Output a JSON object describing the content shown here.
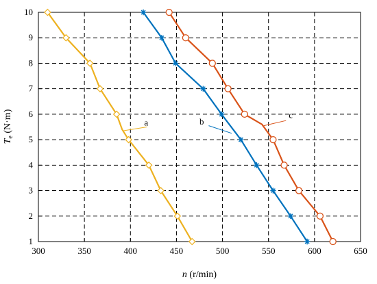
{
  "chart_data": {
    "type": "line",
    "xlabel_italic": "n",
    "xlabel_rest": " (r/min)",
    "ylabel_italic": "T",
    "ylabel_sub": "e",
    "ylabel_rest": " (N·m)",
    "xlim": [
      300,
      650
    ],
    "ylim": [
      1,
      10
    ],
    "xticks": [
      300,
      350,
      400,
      450,
      500,
      550,
      600,
      650
    ],
    "yticks": [
      1,
      2,
      3,
      4,
      5,
      6,
      7,
      8,
      9,
      10
    ],
    "grid": true,
    "series": [
      {
        "name": "a",
        "color": "#EDB120",
        "marker": "diamond",
        "points": [
          [
            467,
            1
          ],
          [
            451,
            2
          ],
          [
            433,
            3
          ],
          [
            420,
            4
          ],
          [
            398,
            5
          ],
          [
            391,
            5.4
          ],
          [
            385,
            6
          ],
          [
            367,
            7
          ],
          [
            356,
            8
          ],
          [
            330,
            9
          ],
          [
            310,
            10
          ]
        ]
      },
      {
        "name": "b",
        "color": "#0072BD",
        "marker": "star",
        "points": [
          [
            592,
            1
          ],
          [
            574,
            2
          ],
          [
            555,
            3
          ],
          [
            537,
            4
          ],
          [
            520,
            5
          ],
          [
            499,
            6
          ],
          [
            479,
            7
          ],
          [
            449,
            8
          ],
          [
            434,
            9
          ],
          [
            414,
            10
          ]
        ]
      },
      {
        "name": "c",
        "color": "#D95319",
        "marker": "circle",
        "points": [
          [
            620,
            1
          ],
          [
            606,
            2
          ],
          [
            583,
            3
          ],
          [
            567,
            4
          ],
          [
            555,
            5
          ],
          [
            543,
            5.6
          ],
          [
            524,
            6
          ],
          [
            506,
            7
          ],
          [
            489,
            8
          ],
          [
            460,
            9
          ],
          [
            442,
            10
          ]
        ]
      }
    ],
    "annotations": [
      {
        "label": "a",
        "text_x": 415,
        "text_y": 5.55,
        "from": [
          418,
          5.5
        ],
        "to": [
          392,
          5.35
        ]
      },
      {
        "label": "b",
        "text_x": 475,
        "text_y": 5.6,
        "from": [
          485,
          5.55
        ],
        "to": [
          510,
          5.25
        ]
      },
      {
        "label": "c",
        "text_x": 572,
        "text_y": 5.85,
        "from": [
          569,
          5.75
        ],
        "to": [
          545,
          5.55
        ]
      }
    ]
  }
}
